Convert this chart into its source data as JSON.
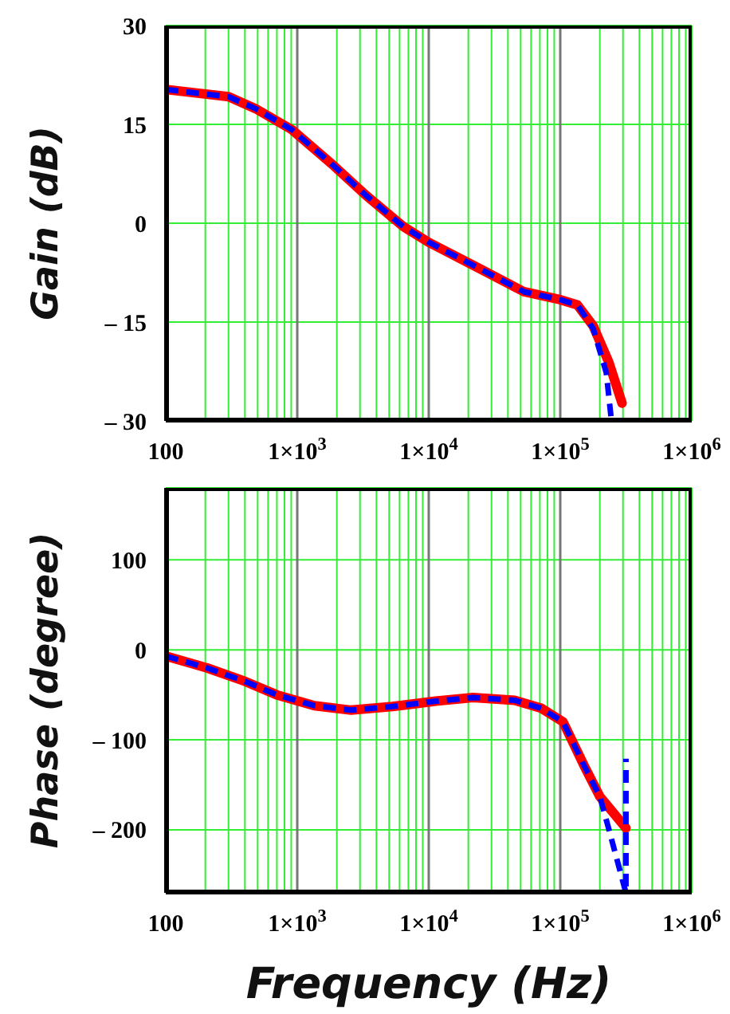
{
  "chart_data": [
    {
      "type": "line",
      "ylabel": "Gain (dB)",
      "log": "x",
      "grid": true,
      "marker": "none",
      "xlim": [
        100,
        1000000
      ],
      "ylim": [
        -30,
        30
      ],
      "xticks": [
        100,
        {
          "value": 200,
          "label": null
        },
        {
          "value": 300,
          "label": null
        },
        {
          "value": 400,
          "label": null
        },
        {
          "value": 500,
          "label": null
        },
        {
          "value": 600,
          "label": null
        },
        {
          "value": 700,
          "label": null
        },
        {
          "value": 800,
          "label": null
        },
        {
          "value": 900,
          "label": null
        },
        {
          "value": 1000,
          "label": "1×10$^{3}$"
        },
        {
          "value": 2000,
          "label": null
        },
        {
          "value": 3000,
          "label": null
        },
        {
          "value": 4000,
          "label": null
        },
        {
          "value": 5000,
          "label": null
        },
        {
          "value": 6000,
          "label": null
        },
        {
          "value": 7000,
          "label": null
        },
        {
          "value": 8000,
          "label": null
        },
        {
          "value": 9000,
          "label": null
        },
        {
          "value": 10000,
          "label": "1×10$^{4}$"
        },
        {
          "value": 20000,
          "label": null
        },
        {
          "value": 30000,
          "label": null
        },
        {
          "value": 40000,
          "label": null
        },
        {
          "value": 50000,
          "label": null
        },
        {
          "value": 60000,
          "label": null
        },
        {
          "value": 70000,
          "label": null
        },
        {
          "value": 80000,
          "label": null
        },
        {
          "value": 90000,
          "label": null
        },
        {
          "value": 100000,
          "label": "1×10$^{5}$"
        },
        {
          "value": 200000,
          "label": null
        },
        {
          "value": 300000,
          "label": null
        },
        {
          "value": 400000,
          "label": null
        },
        {
          "value": 500000,
          "label": null
        },
        {
          "value": 600000,
          "label": null
        },
        {
          "value": 700000,
          "label": null
        },
        {
          "value": 800000,
          "label": null
        },
        {
          "value": 900000,
          "label": null
        },
        {
          "value": 1000000,
          "label": "1×10$^{6}$"
        }
      ],
      "yticks": [
        {
          "value": -30,
          "label": "– 30"
        },
        {
          "value": -15,
          "label": "– 15"
        },
        0,
        15,
        30
      ],
      "series": [
        {
          "color": "#ff0000",
          "line_style": "solid",
          "x": [
            100,
            300,
            480,
            910,
            1900,
            3300,
            6400,
            10000,
            25000,
            53000,
            100000,
            135000,
            178000,
            234000,
            295000
          ],
          "values": [
            20.3,
            19.2,
            17.4,
            14.2,
            8.7,
            4.3,
            -0.5,
            -2.9,
            -7.0,
            -10.4,
            -11.6,
            -12.4,
            -15.6,
            -21.1,
            -27.3
          ]
        },
        {
          "color": "#0000ff",
          "line_style": "dashed",
          "x": [
            100,
            300,
            480,
            910,
            1900,
            3300,
            6400,
            10000,
            25000,
            53000,
            100000,
            135000,
            178000,
            224000,
            245000
          ],
          "values": [
            20.3,
            19.2,
            17.4,
            14.2,
            8.7,
            4.3,
            -0.5,
            -2.9,
            -7.0,
            -10.4,
            -11.6,
            -12.4,
            -16.0,
            -22.7,
            -30
          ]
        }
      ]
    },
    {
      "type": "line",
      "ylabel": "Phase (degree)",
      "xlabel": "Frequency (Hz)",
      "log": "x",
      "grid": true,
      "marker": "none",
      "xlim": [
        100,
        1000000
      ],
      "ylim": [
        -270,
        180
      ],
      "xticks": [
        100,
        {
          "value": 200,
          "label": null
        },
        {
          "value": 300,
          "label": null
        },
        {
          "value": 400,
          "label": null
        },
        {
          "value": 500,
          "label": null
        },
        {
          "value": 600,
          "label": null
        },
        {
          "value": 700,
          "label": null
        },
        {
          "value": 800,
          "label": null
        },
        {
          "value": 900,
          "label": null
        },
        {
          "value": 1000,
          "label": "1×10$^{3}$"
        },
        {
          "value": 2000,
          "label": null
        },
        {
          "value": 3000,
          "label": null
        },
        {
          "value": 4000,
          "label": null
        },
        {
          "value": 5000,
          "label": null
        },
        {
          "value": 6000,
          "label": null
        },
        {
          "value": 7000,
          "label": null
        },
        {
          "value": 8000,
          "label": null
        },
        {
          "value": 9000,
          "label": null
        },
        {
          "value": 10000,
          "label": "1×10$^{4}$"
        },
        {
          "value": 20000,
          "label": null
        },
        {
          "value": 30000,
          "label": null
        },
        {
          "value": 40000,
          "label": null
        },
        {
          "value": 50000,
          "label": null
        },
        {
          "value": 60000,
          "label": null
        },
        {
          "value": 70000,
          "label": null
        },
        {
          "value": 80000,
          "label": null
        },
        {
          "value": 90000,
          "label": null
        },
        {
          "value": 100000,
          "label": "1×10$^{5}$"
        },
        {
          "value": 200000,
          "label": null
        },
        {
          "value": 300000,
          "label": null
        },
        {
          "value": 400000,
          "label": null
        },
        {
          "value": 500000,
          "label": null
        },
        {
          "value": 600000,
          "label": null
        },
        {
          "value": 700000,
          "label": null
        },
        {
          "value": 800000,
          "label": null
        },
        {
          "value": 900000,
          "label": null
        },
        {
          "value": 1000000,
          "label": "1×10$^{6}$"
        }
      ],
      "yticks": [
        {
          "value": -200,
          "label": "– 200"
        },
        {
          "value": -100,
          "label": "– 100"
        },
        0,
        100
      ],
      "series": [
        {
          "color": "#ff0000",
          "line_style": "solid",
          "x": [
            100,
            205,
            400,
            700,
            1350,
            2570,
            5300,
            11300,
            21700,
            45000,
            72000,
            105000,
            151000,
            200000,
            316000
          ],
          "values": [
            -7,
            -20,
            -35,
            -50,
            -62,
            -67,
            -63,
            -57,
            -53,
            -56,
            -65,
            -80,
            -128,
            -163,
            -198
          ]
        },
        {
          "color": "#0000ff",
          "line_style": "dashed",
          "x": [
            100,
            205,
            400,
            700,
            1350,
            2570,
            5300,
            11300,
            21700,
            45000,
            72000,
            105000,
            151000,
            200000,
            240000,
            290000,
            316000,
            316000
          ],
          "values": [
            -7,
            -20,
            -35,
            -50,
            -62,
            -67,
            -63,
            -57,
            -53,
            -56,
            -65,
            -80,
            -128,
            -163,
            -205,
            -250,
            -270,
            -121
          ]
        }
      ]
    }
  ]
}
